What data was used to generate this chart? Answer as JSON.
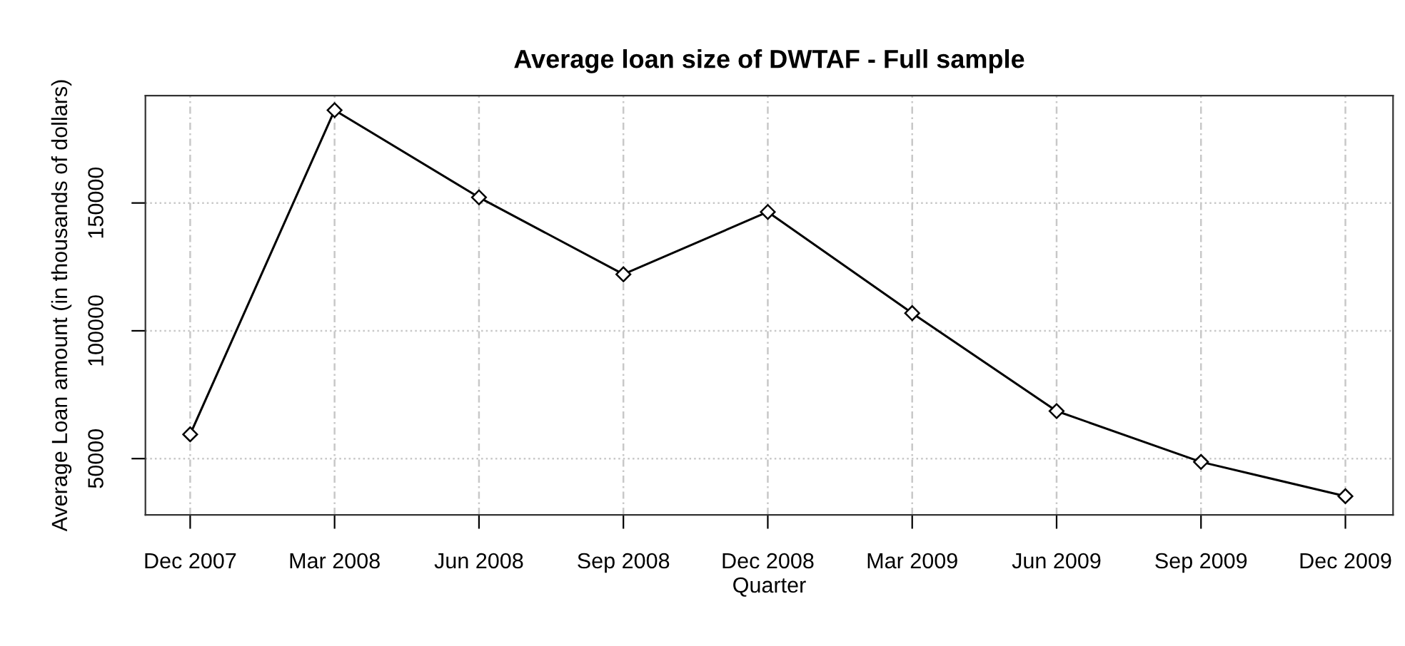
{
  "chart_data": {
    "type": "line",
    "title": "Average loan size of DWTAF - Full sample",
    "xlabel": "Quarter",
    "ylabel": "Average Loan amount (in thousands of dollars)",
    "categories": [
      "Dec 2007",
      "Mar 2008",
      "Jun 2008",
      "Sep 2008",
      "Dec 2008",
      "Mar 2009",
      "Jun 2009",
      "Sep 2009",
      "Dec 2009"
    ],
    "series": [
      {
        "color": "#000000",
        "values": [
          59500,
          186300,
          152200,
          122100,
          146500,
          106900,
          68600,
          48700,
          35300
        ]
      }
    ],
    "ylim": [
      28000,
      192000
    ],
    "yticks": [
      50000,
      100000,
      150000
    ],
    "grid": true,
    "marker": "diamond",
    "line_style": "solid",
    "legend": false
  }
}
